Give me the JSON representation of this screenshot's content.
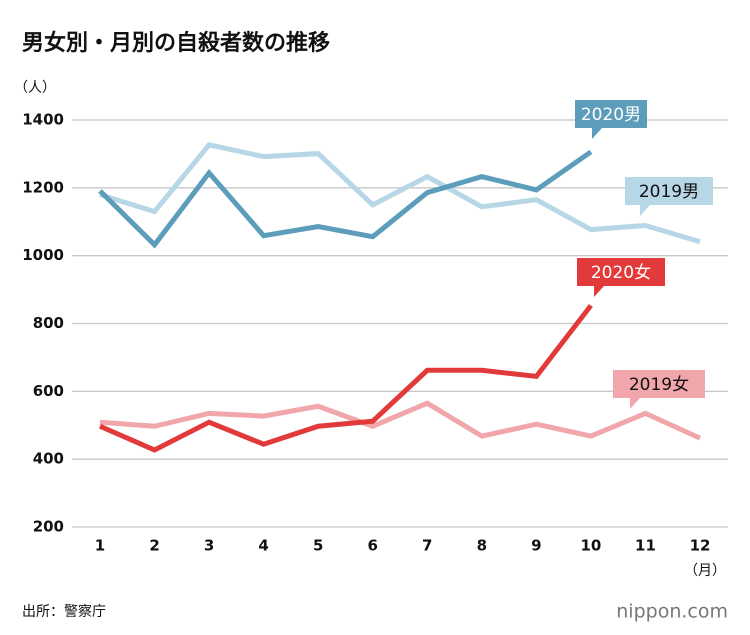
{
  "chart_data": {
    "type": "line",
    "title": "男女別・月別の自殺者数の推移",
    "y_unit": "（人）",
    "x_unit": "（月）",
    "categories": [
      1,
      2,
      3,
      4,
      5,
      6,
      7,
      8,
      9,
      10,
      11,
      12
    ],
    "series": [
      {
        "name": "2019男",
        "color": "#b7d6e6",
        "text_color": "#111111",
        "values": [
          1180,
          1130,
          1327,
          1292,
          1301,
          1150,
          1233,
          1144,
          1165,
          1077,
          1089,
          1041
        ]
      },
      {
        "name": "2019女",
        "color": "#f0a6ab",
        "text_color": "#111111",
        "values": [
          509,
          497,
          535,
          527,
          556,
          497,
          565,
          468,
          503,
          468,
          535,
          462
        ]
      },
      {
        "name": "2020男",
        "color": "#5b9dba",
        "text_color": "#ffffff",
        "values": [
          1191,
          1032,
          1244,
          1059,
          1086,
          1056,
          1186,
          1233,
          1194,
          1306,
          null,
          null
        ]
      },
      {
        "name": "2020女",
        "color": "#e23a3a",
        "text_color": "#ffffff",
        "values": [
          497,
          427,
          509,
          444,
          497,
          512,
          662,
          662,
          644,
          853,
          null,
          null
        ]
      }
    ],
    "ylim": [
      200,
      1400
    ],
    "yticks": [
      200,
      400,
      600,
      800,
      1000,
      1200,
      1400
    ],
    "grid": true,
    "source": "出所：警察庁",
    "brand": "nippon.com"
  }
}
